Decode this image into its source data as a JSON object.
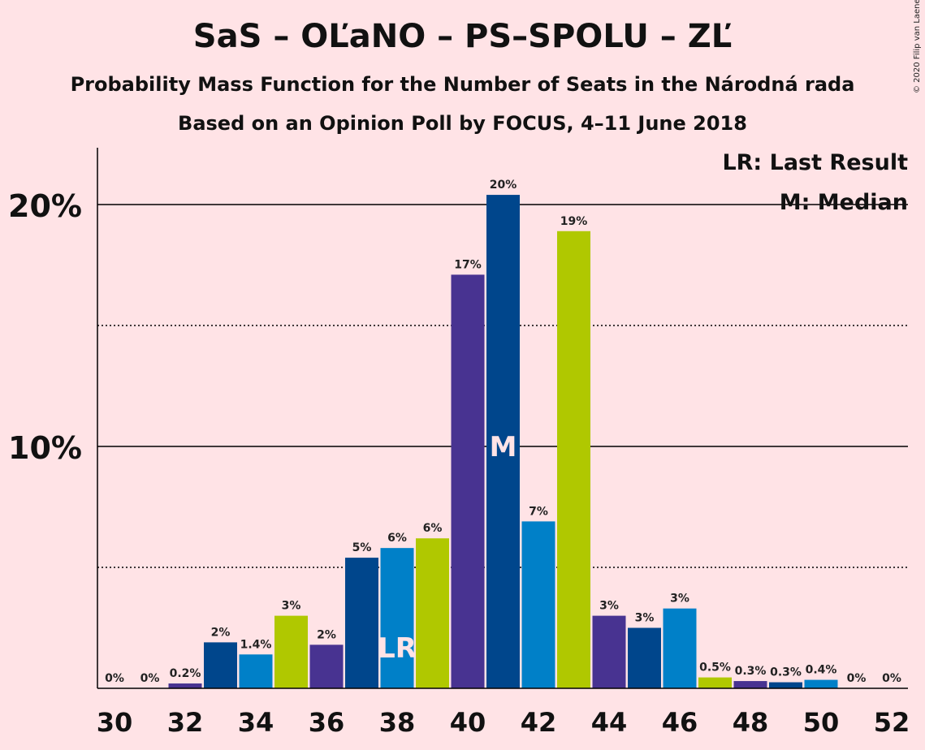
{
  "title": "SaS – OĽaNO – PS–SPOLU – ZĽ",
  "subtitle_1": "Probability Mass Function for the Number of Seats in the Národná rada",
  "subtitle_2": "Based on an Opinion Poll by FOCUS, 4–11 June 2018",
  "copyright": "© 2020 Filip van Laenen",
  "legend": {
    "last_result": "LR: Last Result",
    "median": "M: Median"
  },
  "colors": {
    "background": "#FFE3E6",
    "palette": [
      "#0080C8",
      "#B0C800",
      "#483391",
      "#00468C"
    ]
  },
  "chart_data": {
    "type": "bar",
    "x": [
      30,
      31,
      32,
      33,
      34,
      35,
      36,
      37,
      38,
      39,
      40,
      41,
      42,
      43,
      44,
      45,
      46,
      47,
      48,
      49,
      50,
      51,
      52
    ],
    "values": [
      0,
      0,
      0.2,
      1.9,
      1.4,
      3.0,
      1.8,
      5.4,
      5.8,
      6.2,
      17.1,
      20.4,
      6.9,
      18.9,
      3.0,
      2.5,
      3.3,
      0.45,
      0.3,
      0.25,
      0.35,
      0,
      0
    ],
    "labels": [
      "0%",
      "0%",
      "0.2%",
      "2%",
      "1.4%",
      "3%",
      "2%",
      "5%",
      "6%",
      "6%",
      "17%",
      "20%",
      "7%",
      "19%",
      "3%",
      "3%",
      "3%",
      "0.5%",
      "0.3%",
      "0.3%",
      "0.4%",
      "0%",
      "0%"
    ],
    "x_tick_labels": [
      "30",
      "32",
      "34",
      "36",
      "38",
      "40",
      "42",
      "44",
      "46",
      "48",
      "50",
      "52"
    ],
    "y_tick_labels": [
      "10%",
      "20%"
    ],
    "ylim": [
      0,
      22.3
    ],
    "grid": "solid at 10% and 20%, dotted at 5% and 15%",
    "last_result": {
      "seats": 38,
      "mark": "LR"
    },
    "median": {
      "seats": 41,
      "mark": "M"
    }
  }
}
